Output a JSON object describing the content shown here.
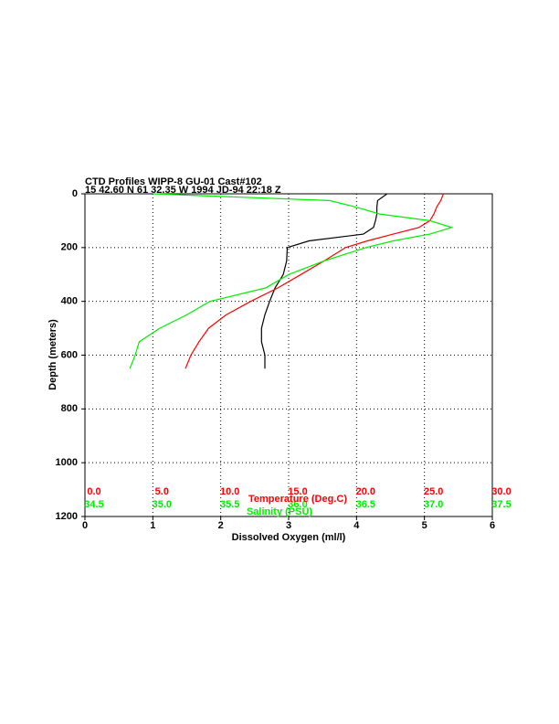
{
  "chart_data": {
    "type": "line",
    "title": [
      "CTD Profiles WIPP-8 GU-01 Cast#102",
      "15 42.60 N  61 32.35 W  1994 JD-94 22:18 Z"
    ],
    "ylabel": "Depth (meters)",
    "xlabel": "Dissolved Oxygen (ml/l)",
    "x2label": "Temperature (Deg.C)",
    "x3label": "Salinity (PSU)",
    "x2color": "#ff0000",
    "x3color": "#00ee00",
    "ylim": [
      1200,
      0
    ],
    "yticks": [
      0,
      200,
      400,
      600,
      800,
      1000,
      1200
    ],
    "xlim": [
      0,
      6
    ],
    "xticks": [
      0,
      1,
      2,
      3,
      4,
      5,
      6
    ],
    "x2lim": [
      0,
      30
    ],
    "x2ticks": [
      {
        "value": 0,
        "label": "0.0"
      },
      {
        "value": 5,
        "label": "5.0"
      },
      {
        "value": 10,
        "label": "10.0"
      },
      {
        "value": 15,
        "label": "15.0"
      },
      {
        "value": 20,
        "label": "20.0"
      },
      {
        "value": 25,
        "label": "25.0"
      },
      {
        "value": 30,
        "label": "30.0"
      }
    ],
    "x3lim": [
      34.5,
      37.5
    ],
    "x3ticks": [
      34.5,
      {
        "value": 35,
        "label": "35.0"
      },
      35.5,
      {
        "value": 36,
        "label": "36.0"
      },
      36.5,
      {
        "value": 37,
        "label": "37.0"
      },
      37.5
    ],
    "grid": true,
    "depth": [
      0,
      25,
      50,
      75,
      100,
      125,
      150,
      175,
      200,
      250,
      300,
      350,
      400,
      450,
      500,
      550,
      600,
      650
    ],
    "series": [
      {
        "axis": "x",
        "color": "#000000",
        "values": [
          4.45,
          4.31,
          4.3,
          4.3,
          4.28,
          4.25,
          4.1,
          3.3,
          2.98,
          2.97,
          2.92,
          2.8,
          2.72,
          2.65,
          2.6,
          2.6,
          2.65,
          2.65
        ]
      },
      {
        "axis": "x2",
        "color": "#ff0000",
        "values": [
          26.4,
          26.2,
          25.9,
          25.7,
          25.4,
          24.6,
          22.7,
          20.8,
          19.2,
          17.6,
          15.9,
          14.2,
          12.2,
          10.4,
          9.1,
          8.4,
          7.8,
          7.4
        ]
      },
      {
        "axis": "x3",
        "color": "#00ee00",
        "values": [
          35.0,
          36.3,
          36.5,
          36.67,
          37.04,
          37.2,
          37.04,
          36.77,
          36.57,
          36.26,
          36.0,
          35.83,
          35.42,
          35.25,
          35.05,
          34.9,
          34.87,
          34.83
        ]
      }
    ]
  }
}
